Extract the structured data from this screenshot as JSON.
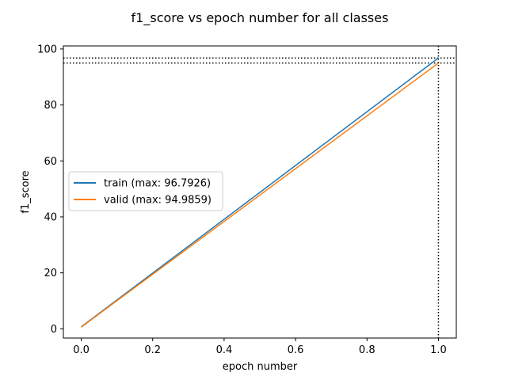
{
  "chart_data": {
    "type": "line",
    "title": "f1_score vs epoch number for all classes",
    "xlabel": "epoch number",
    "ylabel": "f1_score",
    "xlim": [
      -0.05,
      1.05
    ],
    "ylim": [
      -3.3,
      101.1
    ],
    "xticks": [
      0.0,
      0.2,
      0.4,
      0.6,
      0.8,
      1.0
    ],
    "xtick_labels": [
      "0.0",
      "0.2",
      "0.4",
      "0.6",
      "0.8",
      "1.0"
    ],
    "yticks": [
      0,
      20,
      40,
      60,
      80,
      100
    ],
    "ytick_labels": [
      "0",
      "20",
      "40",
      "60",
      "80",
      "100"
    ],
    "grid": false,
    "legend_position": "center-left",
    "series": [
      {
        "name": "train (max: 96.7926)",
        "color": "#1f77b4",
        "x": [
          0,
          1
        ],
        "y": [
          0.7,
          96.7926
        ]
      },
      {
        "name": "valid (max: 94.9859)",
        "color": "#ff7f0e",
        "x": [
          0,
          1
        ],
        "y": [
          0.6,
          94.9859
        ]
      }
    ],
    "reference_lines": {
      "horizontal": [
        96.7926,
        94.9859
      ],
      "vertical": [
        1.0
      ],
      "style": "dotted",
      "color": "#000000"
    }
  }
}
